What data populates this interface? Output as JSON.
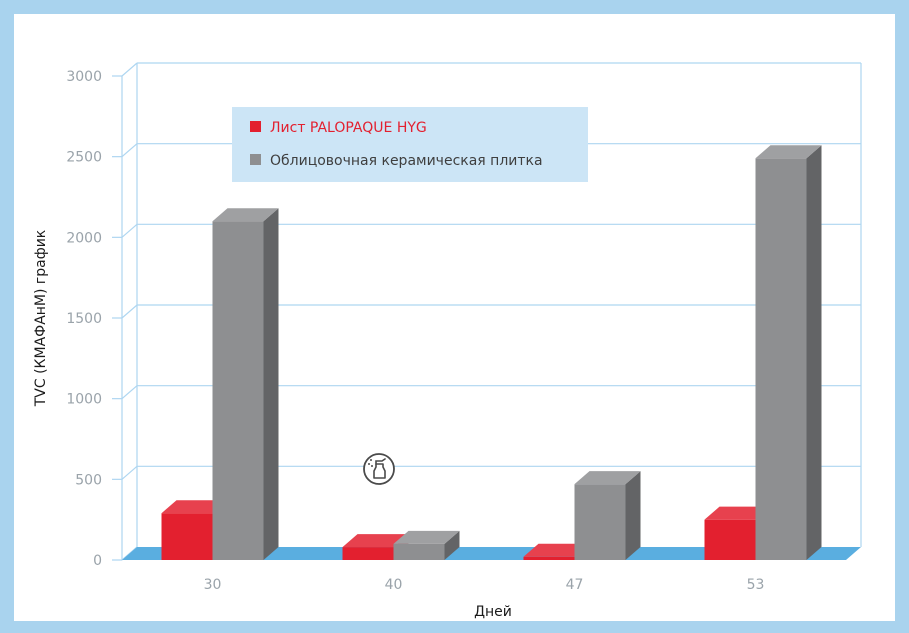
{
  "chart_data": {
    "type": "bar",
    "title": "",
    "xlabel": "Дней",
    "ylabel": "TVC (КМАФАнМ) график",
    "ylim": [
      0,
      3000
    ],
    "yticks": [
      0,
      500,
      1000,
      1500,
      2000,
      2500,
      3000
    ],
    "categories": [
      "30",
      "40",
      "47",
      "53"
    ],
    "series": [
      {
        "name": "Лист PALOPAQUE HYG",
        "color": "#e3202f",
        "values": [
          290,
          80,
          20,
          250
        ]
      },
      {
        "name": "Облицовочная керамическая плитка",
        "color": "#8e8f91",
        "values": [
          2100,
          100,
          470,
          2490
        ]
      }
    ],
    "grid": true,
    "legend_position": "top-left",
    "colors": {
      "border": "#a9d3ee",
      "grid": "#aed6f1",
      "floor": "#5aaee0",
      "legend_bg": "#cce5f6"
    },
    "annotation_icon": "spray-bottle-icon"
  }
}
